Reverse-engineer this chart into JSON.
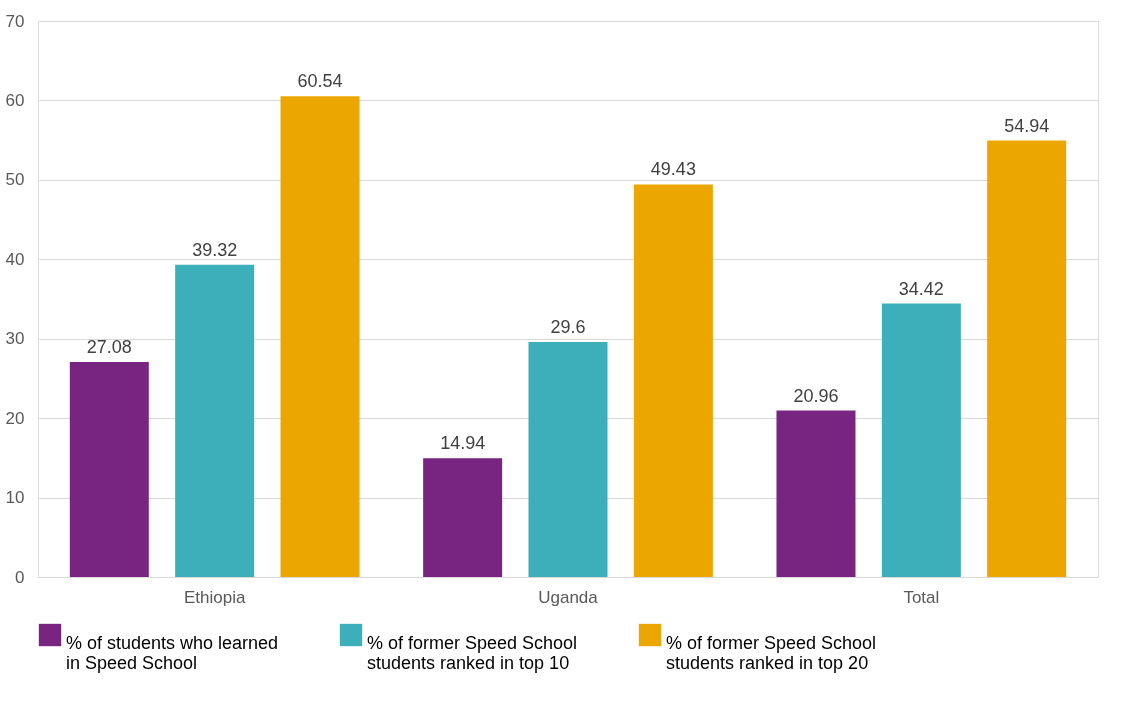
{
  "chart_data": {
    "type": "bar",
    "categories": [
      "Ethiopia",
      "Uganda",
      "Total"
    ],
    "series": [
      {
        "name": "% of students who learned in Speed School",
        "color": "#772581",
        "values": [
          27.08,
          14.94,
          20.96
        ]
      },
      {
        "name": "% of former Speed School students ranked in top 10",
        "color": "#3cafbb",
        "values": [
          39.32,
          29.6,
          34.42
        ]
      },
      {
        "name": "% of former Speed School students ranked in top 20",
        "color": "#eba700",
        "values": [
          60.54,
          49.43,
          54.94
        ]
      }
    ],
    "ylim": [
      0,
      70
    ],
    "yticks": [
      0,
      10,
      20,
      30,
      40,
      50,
      60,
      70
    ],
    "grid": "y",
    "data_labels": true,
    "legend": "bottom"
  }
}
